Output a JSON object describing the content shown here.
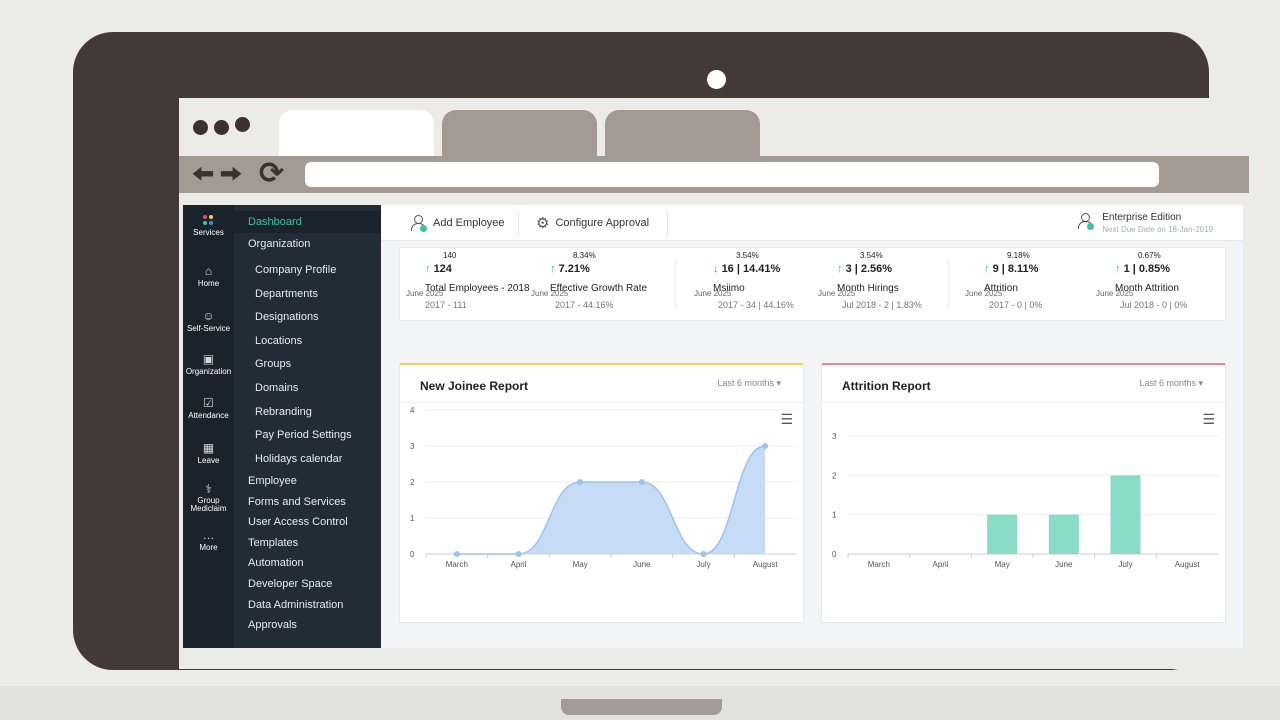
{
  "sidebar_rail": [
    {
      "label": "Services",
      "icon": "services-grid-icon"
    },
    {
      "label": "Home",
      "icon": "home-icon"
    },
    {
      "label": "Self-Service",
      "icon": "user-icon"
    },
    {
      "label": "Organization",
      "icon": "organization-icon"
    },
    {
      "label": "Attendance",
      "icon": "calendar-check-icon"
    },
    {
      "label": "Leave",
      "icon": "calendar-icon"
    },
    {
      "label": "Group Mediclaim",
      "icon": "medical-bag-icon"
    },
    {
      "label": "More",
      "icon": "more-dots-icon"
    }
  ],
  "menu": {
    "dashboard": "Dashboard",
    "organization": "Organization",
    "org_items": [
      "Company Profile",
      "Departments",
      "Designations",
      "Locations",
      "Groups",
      "Domains",
      "Rebranding",
      "Pay Period Settings",
      "Holidays calendar"
    ],
    "sections": [
      "Employee",
      "Forms and Services",
      "User Access Control",
      "Templates",
      "Automation",
      "Developer Space",
      "Data Administration",
      "Approvals"
    ]
  },
  "topbar": {
    "add_employee": "Add Employee",
    "configure_approval": "Configure Approval",
    "edition_title": "Enterprise Edition",
    "edition_sub": "Next Due Date on 18-Jan-2019"
  },
  "stats": [
    {
      "pct": "140",
      "main": "124",
      "dir": "up",
      "label": "Total Employees - 2018",
      "date": "June 2025",
      "prev": "2017 - 111"
    },
    {
      "pct": "8.34%",
      "main": "7.21%",
      "dir": "up",
      "label": "Effective Growth Rate",
      "date": "June 2025",
      "prev": "2017 - 44.16%"
    },
    {
      "pct": "3.54%",
      "main": "16 | 14.41%",
      "dir": "down",
      "label": "Msiimo",
      "date": "June 2025",
      "prev": "2017 - 34 | 44.16%"
    },
    {
      "pct": "3.54%",
      "main": "3 | 2.56%",
      "dir": "up",
      "label": "Month Hirings",
      "date": "June 2025",
      "prev": "Jul 2018 - 2 | 1.83%"
    },
    {
      "pct": "9.18%",
      "main": "9 | 8.11%",
      "dir": "up",
      "label": "Attrition",
      "date": "June 2025",
      "prev": "2017 - 0 | 0%"
    },
    {
      "pct": "0.67%",
      "main": "1 | 0.85%",
      "dir": "up",
      "label": "Month Attrition",
      "date": "June 2025",
      "prev": "Jul 2018 - 0 | 0%"
    }
  ],
  "cards": {
    "joinee_title": "New Joinee Report",
    "joinee_range": "Last 6 months",
    "attrition_title": "Attrition Report",
    "attrition_range": "Last 6 months"
  },
  "colors": {
    "accent_teal": "#39c2a3",
    "joinee_accent": "#f2cf5b",
    "attrition_accent": "#e9888a",
    "area_fill": "#c3daf5",
    "area_stroke": "#9cc3ec",
    "bar_fill": "#88dcc8",
    "sidebar_dark": "#1a232b"
  },
  "chart_data": [
    {
      "type": "area",
      "title": "New Joinee Report",
      "categories": [
        "March",
        "April",
        "May",
        "June",
        "July",
        "August"
      ],
      "values": [
        0,
        0,
        2,
        2,
        0,
        3
      ],
      "ylim": [
        0,
        4
      ],
      "yticks": [
        0,
        1,
        2,
        3,
        4
      ],
      "grid": true
    },
    {
      "type": "bar",
      "title": "Attrition Report",
      "categories": [
        "March",
        "April",
        "May",
        "June",
        "July",
        "August"
      ],
      "values": [
        0,
        0,
        1,
        1,
        2,
        0
      ],
      "ylim": [
        0,
        3
      ],
      "yticks": [
        0,
        1,
        2,
        3
      ],
      "grid": true
    }
  ]
}
